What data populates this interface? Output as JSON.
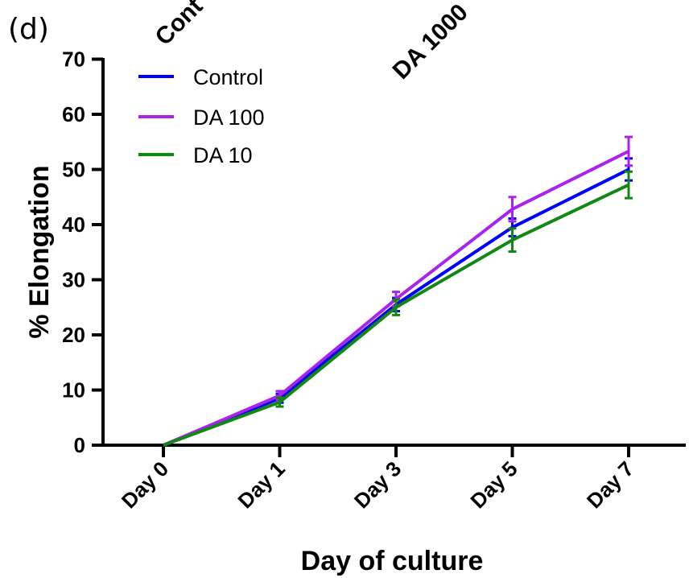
{
  "panel_label": "(d)",
  "top_labels": [
    "Cont",
    "DA 1000"
  ],
  "chart_data": {
    "type": "line",
    "categories": [
      "Day 0",
      "Day 1",
      "Day 3",
      "Day 5",
      "Day 7"
    ],
    "xlabel": "Day of culture",
    "ylabel": "% Elongation",
    "ylim": [
      0,
      70
    ],
    "yticks": [
      0,
      10,
      20,
      30,
      40,
      50,
      60,
      70
    ],
    "grid": false,
    "legend_position": "top-left",
    "series": [
      {
        "name": "Control",
        "color": "#0000ff",
        "values": [
          0,
          8.5,
          25.5,
          39.5,
          50.0
        ],
        "errors": [
          0,
          0.8,
          1.2,
          1.6,
          2.0
        ]
      },
      {
        "name": "DA 100",
        "color": "#aa22ee",
        "values": [
          0,
          9.0,
          26.5,
          42.8,
          53.3
        ],
        "errors": [
          0,
          0.8,
          1.3,
          2.2,
          2.6
        ]
      },
      {
        "name": "DA 10",
        "color": "#118811",
        "values": [
          0,
          7.8,
          25.0,
          37.2,
          47.2
        ],
        "errors": [
          0,
          0.8,
          1.4,
          2.1,
          2.4
        ]
      }
    ]
  }
}
